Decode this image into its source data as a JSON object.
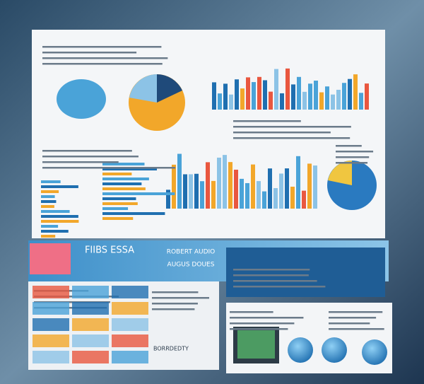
{
  "panels": [
    {
      "title": "FIIBS ESSA"
    },
    {
      "title": "ROBERT AUDIO"
    },
    {
      "title": "AUGUS DOUES"
    }
  ],
  "footer": {
    "label": "BORRDEDTY"
  }
}
